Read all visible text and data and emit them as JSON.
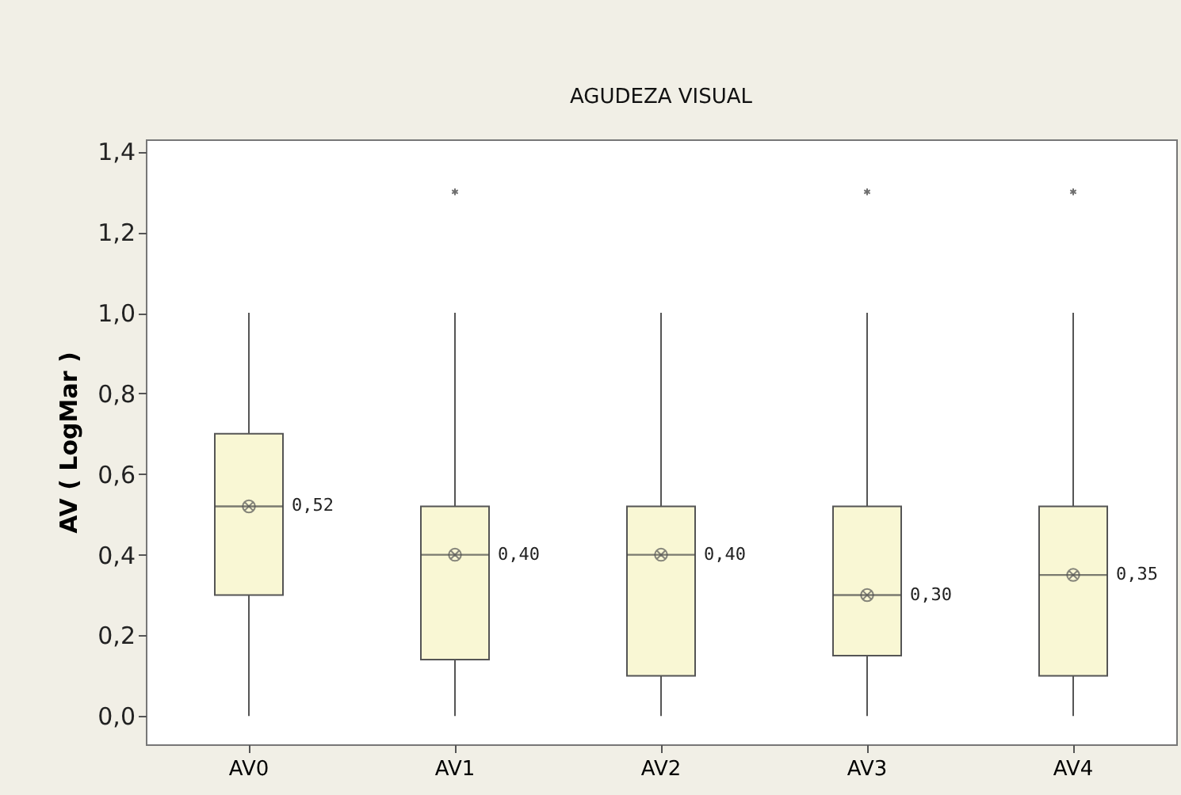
{
  "chart_data": {
    "type": "box",
    "title": "AGUDEZA VISUAL",
    "ylabel": "AV ( LogMar )",
    "categories": [
      "AV0",
      "AV1",
      "AV2",
      "AV3",
      "AV4"
    ],
    "boxes": [
      {
        "low": 0,
        "q1": 0.3,
        "median": 0.52,
        "q3": 0.7,
        "high": 1.0,
        "mean": 0.52
      },
      {
        "low": 0,
        "q1": 0.14,
        "median": 0.4,
        "q3": 0.52,
        "high": 1.0,
        "mean": 0.4,
        "outliers": [
          1.3
        ]
      },
      {
        "low": 0,
        "q1": 0.1,
        "median": 0.4,
        "q3": 0.52,
        "high": 1.0,
        "mean": 0.4
      },
      {
        "low": 0,
        "q1": 0.15,
        "median": 0.3,
        "q3": 0.52,
        "high": 1.0,
        "mean": 0.3,
        "outliers": [
          1.3
        ]
      },
      {
        "low": 0,
        "q1": 0.1,
        "median": 0.35,
        "q3": 0.52,
        "high": 1.0,
        "mean": 0.35,
        "outliers": [
          1.3
        ]
      }
    ],
    "color": "#f9f7d4",
    "annotations": [
      {
        "text": "0,52",
        "x": "AV0",
        "y": 0.52
      },
      {
        "text": "0,40",
        "x": "AV1",
        "y": 0.4
      },
      {
        "text": "0,40",
        "x": "AV2",
        "y": 0.4
      },
      {
        "text": "0,30",
        "x": "AV3",
        "y": 0.3
      },
      {
        "text": "0,35",
        "x": "AV4",
        "y": 0.35
      }
    ],
    "ylim": [
      -0.07,
      1.43
    ],
    "yticks": [
      {
        "value": 0,
        "label": "0,0"
      },
      {
        "value": 0.2,
        "label": "0,2"
      },
      {
        "value": 0.4,
        "label": "0,4"
      },
      {
        "value": 0.6,
        "label": "0,6"
      },
      {
        "value": 0.8,
        "label": "0,8"
      },
      {
        "value": 1.0,
        "label": "1,0"
      },
      {
        "value": 1.2,
        "label": "1,2"
      },
      {
        "value": 1.4,
        "label": "1,4"
      }
    ],
    "grid": false
  }
}
